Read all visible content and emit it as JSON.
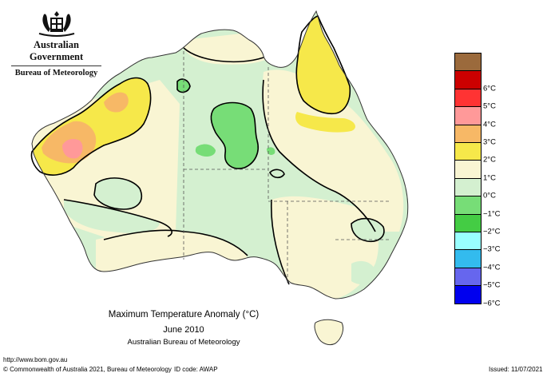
{
  "header": {
    "government": "Australian Government",
    "bureau": "Bureau of Meteorology"
  },
  "map": {
    "title": "Maximum Temperature Anomaly (°C)",
    "period": "June 2010",
    "source": "Australian Bureau of Meteorology",
    "legend": [
      {
        "label": "",
        "color": "#9b6a3c"
      },
      {
        "label": "6°C",
        "color": "#cc0000"
      },
      {
        "label": "5°C",
        "color": "#ff3333"
      },
      {
        "label": "4°C",
        "color": "#ff9999"
      },
      {
        "label": "3°C",
        "color": "#f7b866"
      },
      {
        "label": "2°C",
        "color": "#f6e84a"
      },
      {
        "label": "1°C",
        "color": "#f9f5d3"
      },
      {
        "label": "0°C",
        "color": "#d4f0d0"
      },
      {
        "label": "−1°C",
        "color": "#77dd77"
      },
      {
        "label": "−2°C",
        "color": "#44cc44"
      },
      {
        "label": "−3°C",
        "color": "#99ffff"
      },
      {
        "label": "−4°C",
        "color": "#33bbee"
      },
      {
        "label": "−5°C",
        "color": "#6666ee"
      },
      {
        "label": "−6°C",
        "color": "#0000ee"
      }
    ]
  },
  "footer": {
    "url": "http://www.bom.gov.au",
    "copyright": "© Commonwealth of Australia 2021, Bureau of Meteorology",
    "id_code": "ID code: AWAP",
    "issued": "Issued: 11/07/2021"
  }
}
